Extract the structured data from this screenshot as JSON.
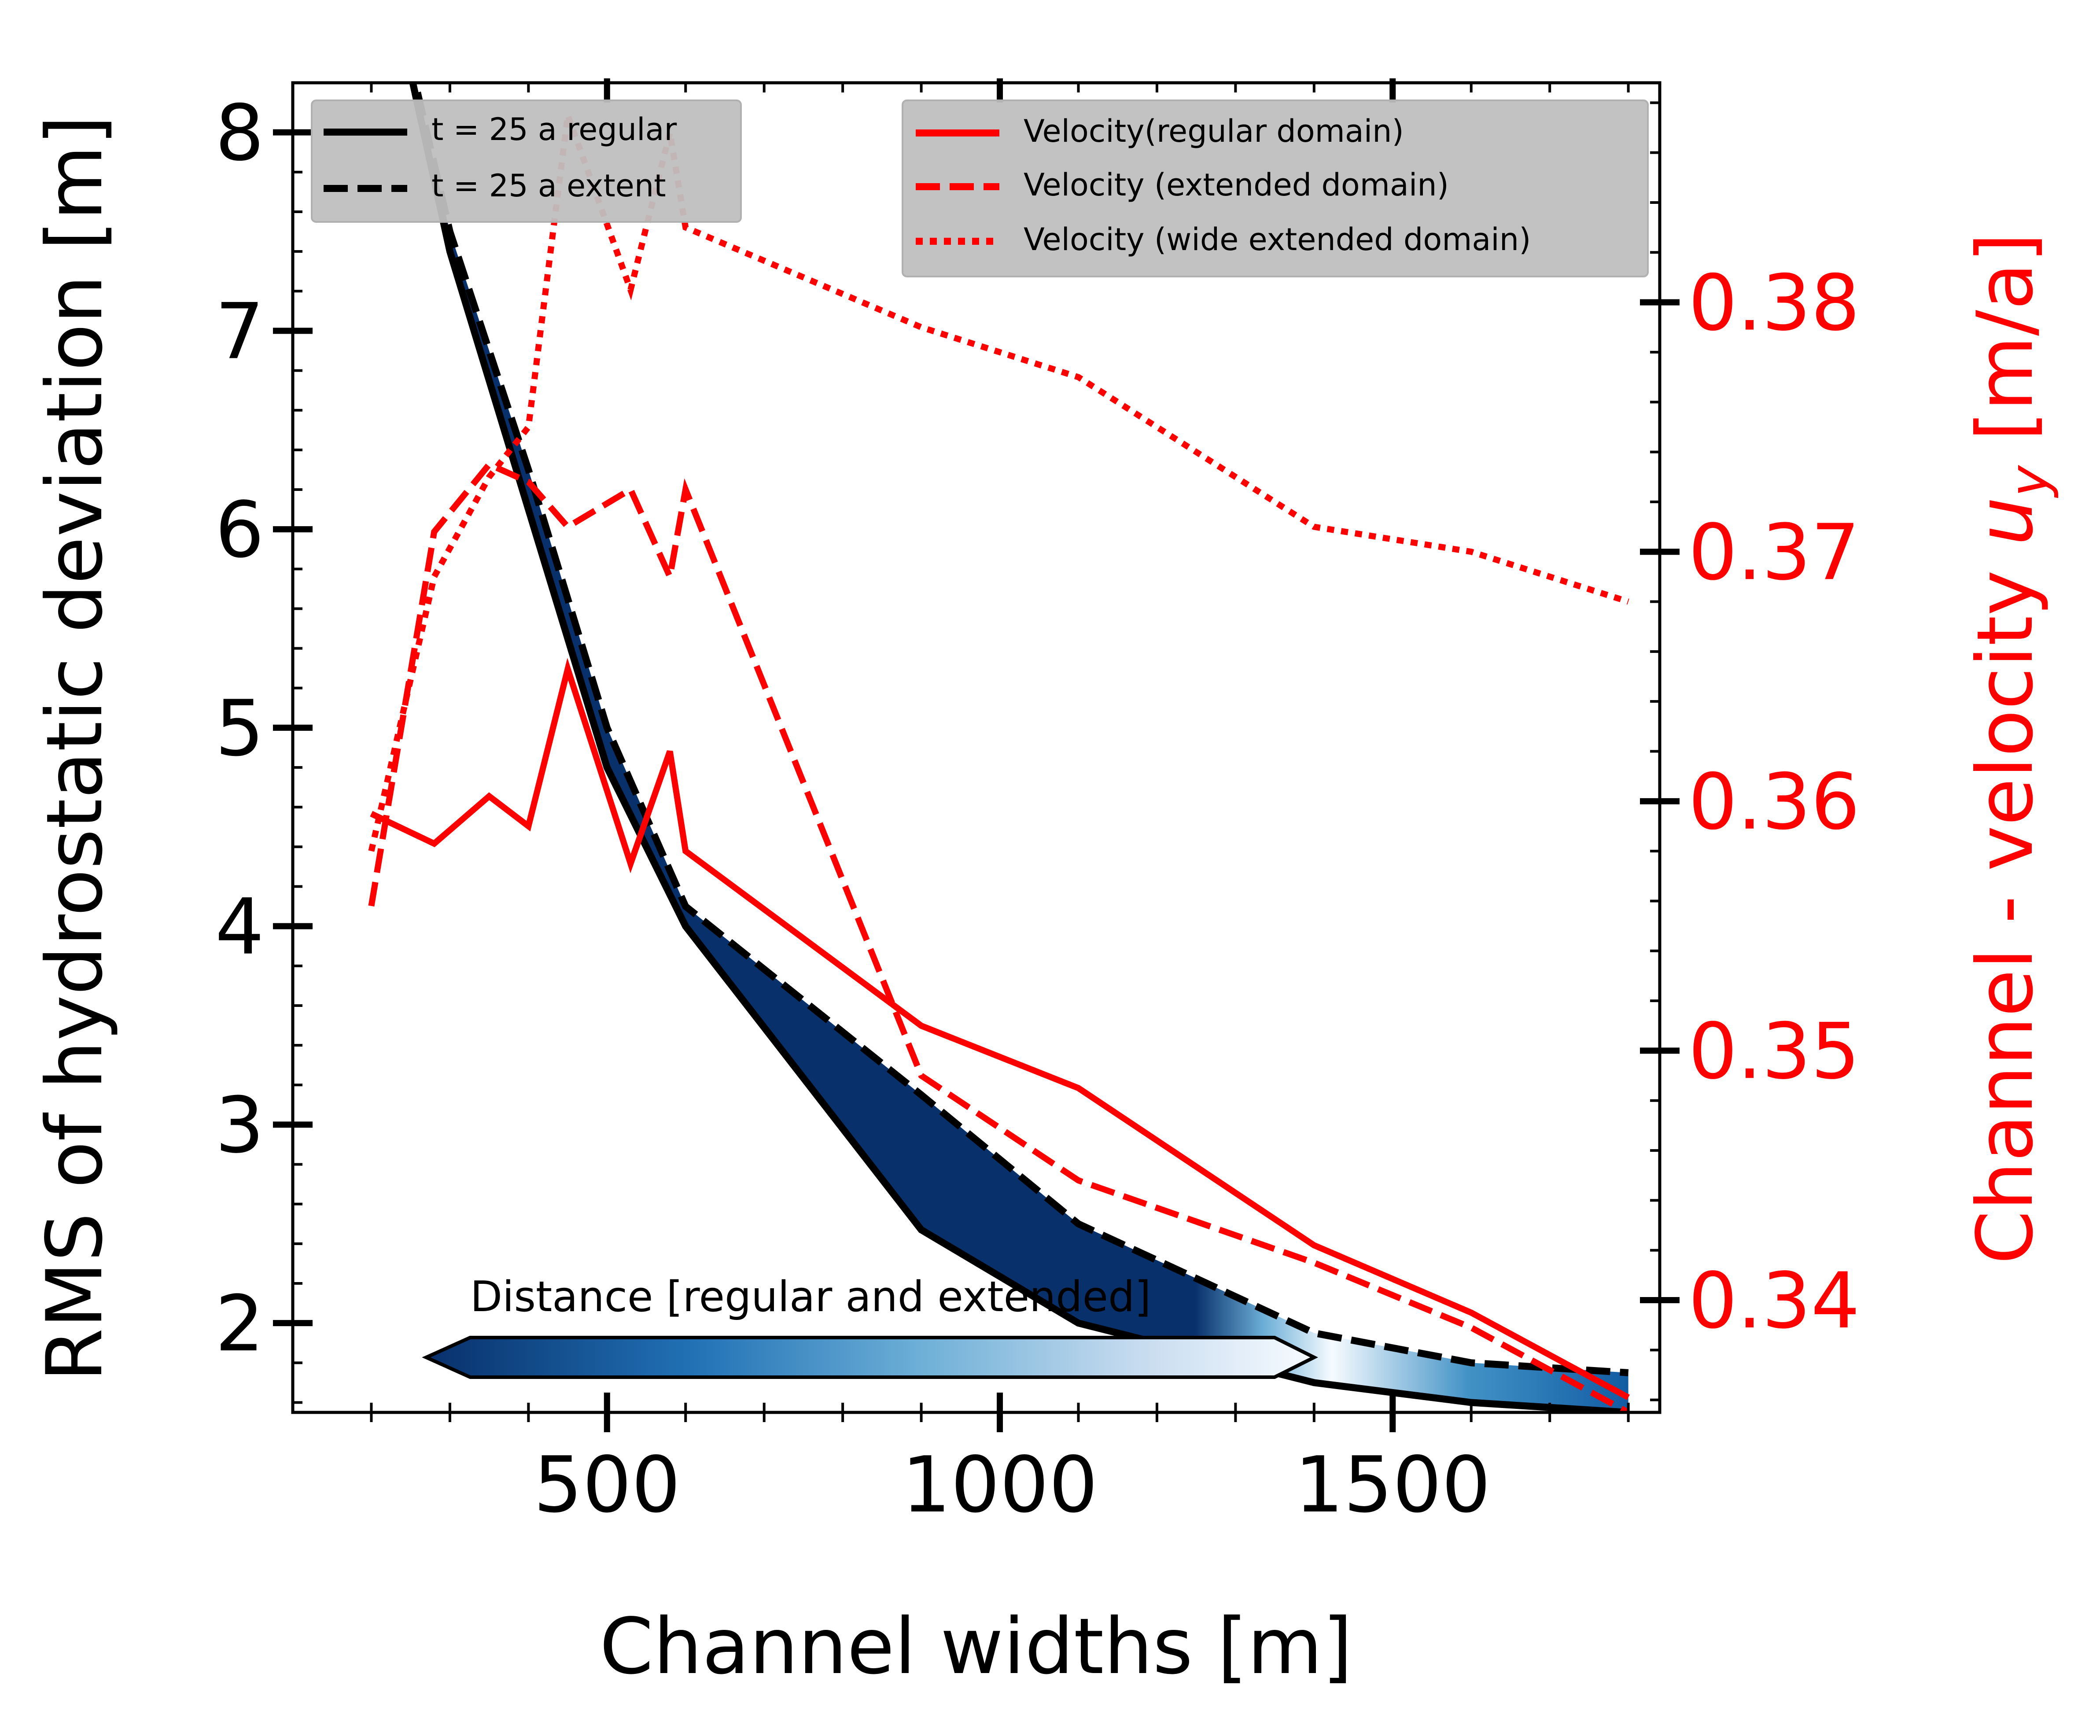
{
  "chart_data": {
    "type": "line",
    "xlabel": "Channel widths [m]",
    "ylabel_left": "RMS of hydrostatic deviation [m]",
    "ylabel_right_prefix": "Channel - velocity ",
    "ylabel_right_var": "u",
    "ylabel_right_sub": "y",
    "ylabel_right_suffix": " [m/a]",
    "xlim": [
      100,
      1840
    ],
    "ylim_left": [
      1.55,
      8.25
    ],
    "ylim_right": [
      0.3355,
      0.3888
    ],
    "x_ticks": [
      500,
      1000,
      1500
    ],
    "x_tick_labels": [
      "500",
      "1000",
      "1500"
    ],
    "y_left_ticks": [
      2,
      3,
      4,
      5,
      6,
      7,
      8
    ],
    "y_left_tick_labels": [
      "2",
      "3",
      "4",
      "5",
      "6",
      "7",
      "8"
    ],
    "y_right_ticks": [
      0.34,
      0.35,
      0.36,
      0.37,
      0.38
    ],
    "y_right_tick_labels": [
      "0.34",
      "0.35",
      "0.36",
      "0.37",
      "0.38"
    ],
    "grid": false,
    "colors": {
      "axis": "#000000",
      "velocity": "#ff0000",
      "fill_dark": "#08306b",
      "fill_light": "#f7fbff",
      "fill_mid": "#2171b5",
      "legend_bg": "#bfbfbf"
    },
    "rms_series": [
      {
        "name": "t = 25 a regular",
        "axis": "left",
        "style": "solid",
        "x": [
          200,
          300,
          400,
          500,
          600,
          900,
          1100,
          1400,
          1600,
          1800
        ],
        "y": [
          9.2,
          7.4,
          6.1,
          4.8,
          4.0,
          2.47,
          2.0,
          1.7,
          1.6,
          1.55
        ]
      },
      {
        "name": "t = 25 a extent",
        "axis": "left",
        "style": "dashed",
        "x": [
          200,
          300,
          400,
          500,
          600,
          900,
          1100,
          1400,
          1600,
          1800
        ],
        "y": [
          9.2,
          7.5,
          6.3,
          5.0,
          4.1,
          3.15,
          2.5,
          1.95,
          1.8,
          1.75
        ]
      }
    ],
    "velocity_series": [
      {
        "name": "Velocity(regular domain)",
        "axis": "right",
        "style": "solid",
        "x": [
          200,
          280,
          350,
          400,
          450,
          530,
          580,
          600,
          900,
          1100,
          1400,
          1600,
          1800
        ],
        "y": [
          0.3595,
          0.3583,
          0.3602,
          0.359,
          0.3653,
          0.3575,
          0.362,
          0.358,
          0.351,
          0.3485,
          0.3422,
          0.3395,
          0.3361
        ]
      },
      {
        "name": "Velocity (extended domain)",
        "axis": "right",
        "style": "dashed",
        "x": [
          200,
          280,
          350,
          400,
          450,
          530,
          580,
          600,
          900,
          1100,
          1400,
          1600,
          1800
        ],
        "y": [
          0.3558,
          0.3708,
          0.3735,
          0.3728,
          0.371,
          0.3725,
          0.369,
          0.3725,
          0.349,
          0.3448,
          0.3415,
          0.3389,
          0.3355
        ]
      },
      {
        "name": "Velocity (wide extended domain)",
        "axis": "right",
        "style": "dotted",
        "x": [
          200,
          280,
          350,
          400,
          450,
          530,
          580,
          600,
          900,
          1100,
          1400,
          1600,
          1800
        ],
        "y": [
          0.358,
          0.369,
          0.373,
          0.375,
          0.3875,
          0.3805,
          0.3868,
          0.383,
          0.379,
          0.377,
          0.371,
          0.37,
          0.368
        ]
      }
    ],
    "legend_left": {
      "placement": "top-left",
      "entries": [
        "t = 25 a regular",
        "t = 25 a extent"
      ]
    },
    "legend_right": {
      "placement": "top-right",
      "entries": [
        "Velocity(regular domain)",
        "Velocity (extended domain)",
        "Velocity (wide extended domain)"
      ]
    },
    "colorbar": {
      "label": "Distance [regular and extended]",
      "orientation": "horizontal",
      "extend": "both",
      "colormap": "Blues_r"
    }
  }
}
